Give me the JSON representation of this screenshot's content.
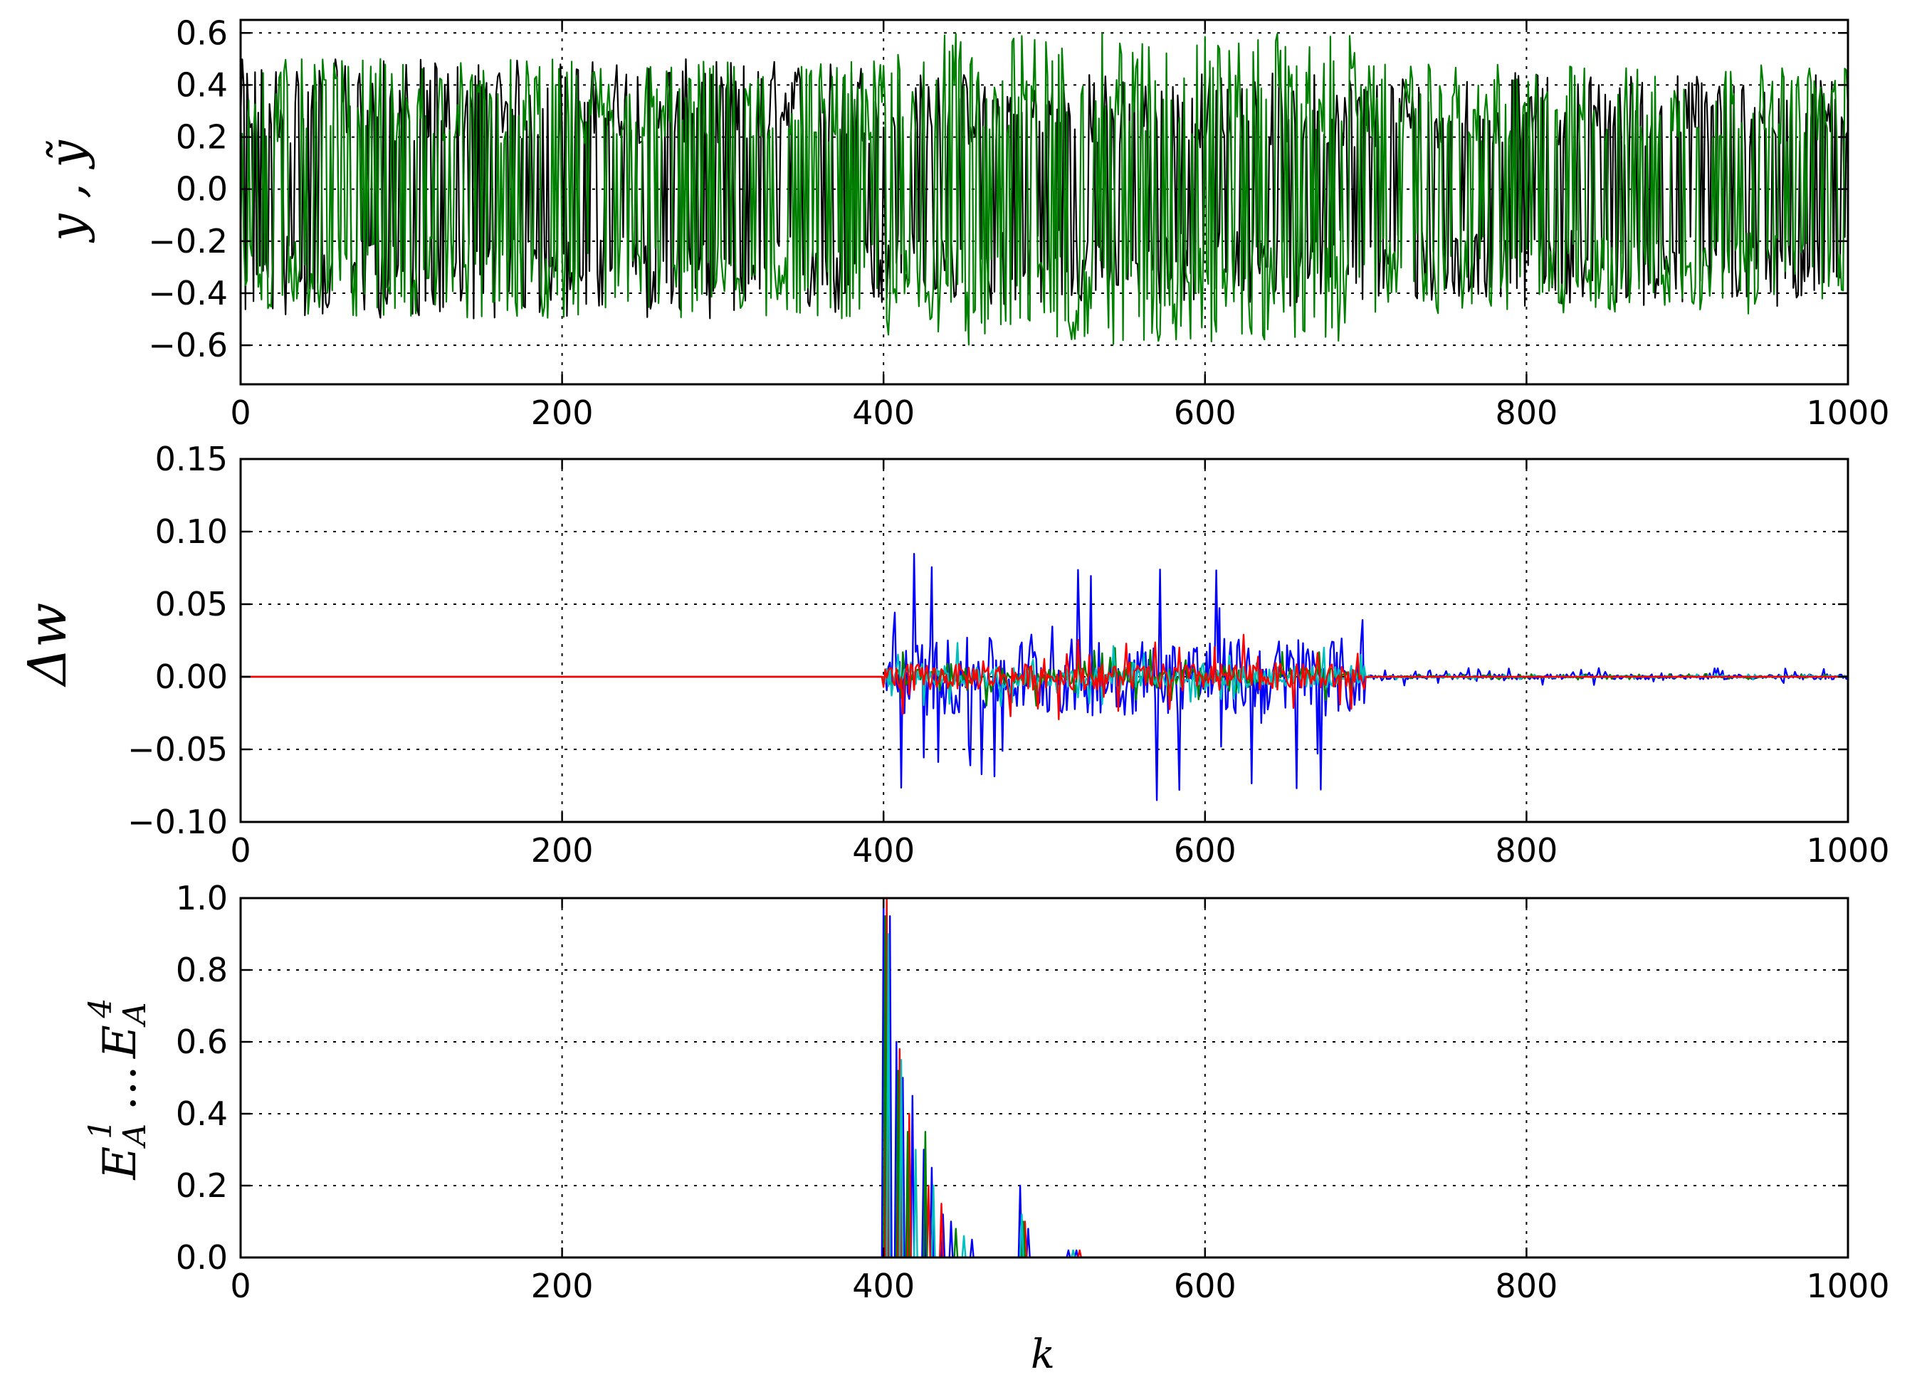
{
  "colors": {
    "black": "#000000",
    "green": "#008000",
    "blue": "#0000ff",
    "red": "#ff0000",
    "cyan": "#00bfbf",
    "grid": "#000000"
  },
  "chart_data": [
    {
      "type": "line",
      "ylabel_main": "y , ",
      "ylabel_tilde": "ỹ",
      "xlim": [
        0,
        1000
      ],
      "ylim": [
        -0.75,
        0.65
      ],
      "x_ticks": [
        0,
        200,
        400,
        600,
        800,
        1000
      ],
      "x_tick_labels": [
        "0",
        "200",
        "400",
        "600",
        "800",
        "1000"
      ],
      "y_ticks": [
        0.6,
        0.4,
        0.2,
        0.0,
        -0.2,
        -0.4,
        -0.6
      ],
      "y_tick_labels": [
        "0.6",
        "0.4",
        "0.2",
        "0.0",
        "−0.2",
        "−0.4",
        "−0.6"
      ],
      "grid": true,
      "series": [
        {
          "color": "black",
          "regimes": [
            {
              "from": 0,
              "to": 400,
              "mean": 0.0,
              "amp": 0.5,
              "min": -0.52,
              "max": 0.5
            },
            {
              "from": 400,
              "to": 1000,
              "mean": 0.0,
              "amp": 0.45,
              "min": -0.52,
              "max": 0.5
            }
          ]
        },
        {
          "color": "green",
          "regimes": [
            {
              "from": 0,
              "to": 400,
              "mean": 0.0,
              "amp": 0.5,
              "min": -0.52,
              "max": 0.5
            },
            {
              "from": 400,
              "to": 700,
              "mean": 0.0,
              "amp": 0.6,
              "min": -0.75,
              "max": 0.6
            },
            {
              "from": 700,
              "to": 1000,
              "mean": 0.0,
              "amp": 0.48,
              "min": -0.52,
              "max": 0.52
            }
          ]
        }
      ]
    },
    {
      "type": "line",
      "ylabel": "Δw",
      "xlim": [
        0,
        1000
      ],
      "ylim": [
        -0.1,
        0.15
      ],
      "x_ticks": [
        0,
        200,
        400,
        600,
        800,
        1000
      ],
      "x_tick_labels": [
        "0",
        "200",
        "400",
        "600",
        "800",
        "1000"
      ],
      "y_ticks": [
        0.15,
        0.1,
        0.05,
        0.0,
        -0.05,
        -0.1
      ],
      "y_tick_labels": [
        "0.15",
        "0.10",
        "0.05",
        "0.00",
        "−0.05",
        "−0.10"
      ],
      "grid": true,
      "series": [
        {
          "color": "blue",
          "regimes": [
            {
              "from": 0,
              "to": 400,
              "amp": 0.0
            },
            {
              "from": 400,
              "to": 700,
              "amp": 0.09,
              "min": -0.085,
              "max": 0.1
            },
            {
              "from": 700,
              "to": 1000,
              "amp": 0.006
            }
          ]
        },
        {
          "color": "green",
          "regimes": [
            {
              "from": 0,
              "to": 400,
              "amp": 0.0
            },
            {
              "from": 400,
              "to": 700,
              "amp": 0.02
            },
            {
              "from": 700,
              "to": 1000,
              "amp": 0.002
            }
          ]
        },
        {
          "color": "cyan",
          "regimes": [
            {
              "from": 0,
              "to": 400,
              "amp": 0.0
            },
            {
              "from": 400,
              "to": 700,
              "amp": 0.025
            },
            {
              "from": 700,
              "to": 1000,
              "amp": 0.002
            }
          ]
        },
        {
          "color": "red",
          "regimes": [
            {
              "from": 0,
              "to": 400,
              "amp": 0.0
            },
            {
              "from": 400,
              "to": 700,
              "amp": 0.03
            },
            {
              "from": 700,
              "to": 1000,
              "amp": 0.0
            }
          ]
        }
      ]
    },
    {
      "type": "line",
      "ylabel_parts": [
        "E",
        "A",
        "1",
        "…",
        "E",
        "A",
        "4"
      ],
      "xlabel": "k",
      "xlim": [
        0,
        1000
      ],
      "ylim": [
        0.0,
        1.0
      ],
      "x_ticks": [
        0,
        200,
        400,
        600,
        800,
        1000
      ],
      "x_tick_labels": [
        "0",
        "200",
        "400",
        "600",
        "800",
        "1000"
      ],
      "y_ticks": [
        1.0,
        0.8,
        0.6,
        0.4,
        0.2,
        0.0
      ],
      "y_tick_labels": [
        "1.0",
        "0.8",
        "0.6",
        "0.4",
        "0.2",
        "0.0"
      ],
      "grid": true,
      "series": [
        {
          "color": "blue",
          "peaks": [
            [
              400,
              1.0
            ],
            [
              404,
              0.95
            ],
            [
              408,
              0.6
            ],
            [
              412,
              0.5
            ],
            [
              418,
              0.45
            ],
            [
              425,
              0.3
            ],
            [
              430,
              0.25
            ],
            [
              437,
              0.12
            ],
            [
              442,
              0.1
            ],
            [
              455,
              0.05
            ],
            [
              485,
              0.2
            ],
            [
              490,
              0.08
            ],
            [
              515,
              0.02
            ],
            [
              520,
              0.02
            ]
          ]
        },
        {
          "color": "red",
          "peaks": [
            [
              402,
              1.0
            ],
            [
              410,
              0.58
            ],
            [
              416,
              0.4
            ],
            [
              428,
              0.2
            ],
            [
              436,
              0.15
            ],
            [
              488,
              0.1
            ],
            [
              522,
              0.02
            ]
          ]
        },
        {
          "color": "green",
          "peaks": [
            [
              401,
              0.95
            ],
            [
              409,
              0.52
            ],
            [
              415,
              0.35
            ],
            [
              426,
              0.35
            ],
            [
              445,
              0.08
            ],
            [
              487,
              0.1
            ]
          ]
        },
        {
          "color": "cyan",
          "peaks": [
            [
              403,
              0.9
            ],
            [
              411,
              0.55
            ],
            [
              420,
              0.3
            ],
            [
              431,
              0.2
            ],
            [
              450,
              0.06
            ],
            [
              486,
              0.12
            ],
            [
              518,
              0.02
            ]
          ]
        }
      ]
    }
  ]
}
